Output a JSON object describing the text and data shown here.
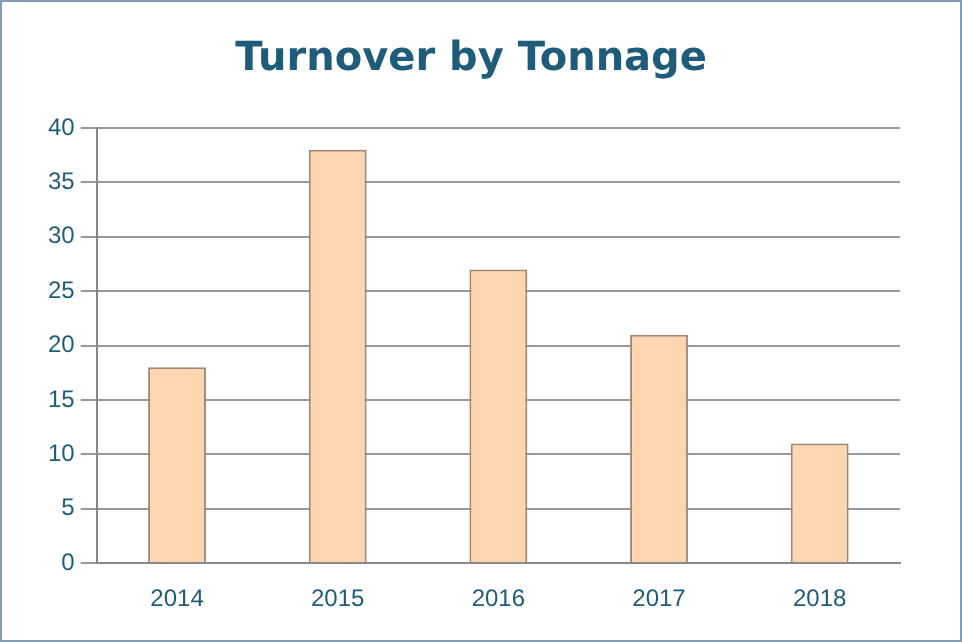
{
  "chart_data": {
    "type": "bar",
    "title": "Turnover by Tonnage",
    "categories": [
      "2014",
      "2015",
      "2016",
      "2017",
      "2018"
    ],
    "values": [
      18,
      38,
      27,
      21,
      11
    ],
    "color": "#fdd5b1",
    "ylim": [
      0,
      40
    ],
    "yticks": [
      0,
      5,
      10,
      15,
      20,
      25,
      30,
      35,
      40
    ],
    "grid": "y",
    "legend": false
  }
}
